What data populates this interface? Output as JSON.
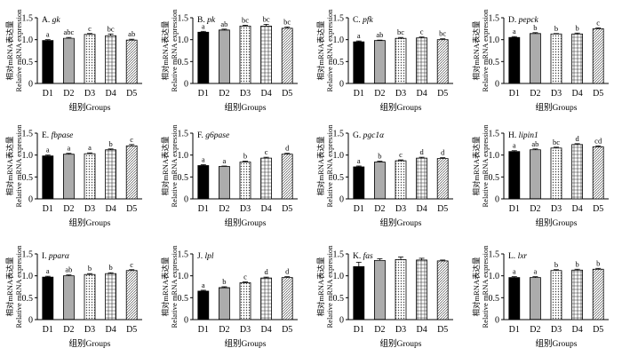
{
  "colors": {
    "bar_stroke": "#000000",
    "axis": "#000000",
    "background": "#ffffff"
  },
  "chart_data": [
    {
      "type": "bar",
      "title_prefix": "A. ",
      "title_gene": "gk",
      "categories": [
        "D1",
        "D2",
        "D3",
        "D4",
        "D5"
      ],
      "values": [
        0.98,
        1.03,
        1.12,
        1.09,
        0.99
      ],
      "errors": [
        0.02,
        0.02,
        0.02,
        0.04,
        0.02
      ],
      "labels": [
        "a",
        "abc",
        "c",
        "bc",
        "ab"
      ],
      "ylim": [
        0,
        1.5
      ],
      "yticks": [
        "0",
        "0.5",
        "1.0",
        "1.5"
      ],
      "ylabel_cn": "相对mRNA表达量",
      "ylabel_en": "Relative mRNA expression",
      "xlabel": "组别Groups"
    },
    {
      "type": "bar",
      "title_prefix": "B. ",
      "title_gene": "pk",
      "categories": [
        "D1",
        "D2",
        "D3",
        "D4",
        "D5"
      ],
      "values": [
        1.17,
        1.22,
        1.31,
        1.31,
        1.26
      ],
      "errors": [
        0.02,
        0.02,
        0.02,
        0.04,
        0.03
      ],
      "labels": [
        "a",
        "ab",
        "bc",
        "bc",
        "bc"
      ],
      "ylim": [
        0,
        1.5
      ],
      "yticks": [
        "0",
        "0.5",
        "1.0",
        "1.5"
      ],
      "ylabel_cn": "相对mRNA表达量",
      "ylabel_en": "Relative mRNA expression",
      "xlabel": "组别Groups"
    },
    {
      "type": "bar",
      "title_prefix": "C. ",
      "title_gene": "pfk",
      "categories": [
        "D1",
        "D2",
        "D3",
        "D4",
        "D5"
      ],
      "values": [
        0.95,
        0.98,
        1.03,
        1.04,
        1.0
      ],
      "errors": [
        0.02,
        0.01,
        0.02,
        0.02,
        0.02
      ],
      "labels": [
        "a",
        "ab",
        "bc",
        "c",
        "bc"
      ],
      "ylim": [
        0,
        1.5
      ],
      "yticks": [
        "0",
        "0.5",
        "1.0",
        "1.5"
      ],
      "ylabel_cn": "相对mRNA表达量",
      "ylabel_en": "Relative mRNA expression",
      "xlabel": "组别Groups"
    },
    {
      "type": "bar",
      "title_prefix": "D. ",
      "title_gene": "pepck",
      "categories": [
        "D1",
        "D2",
        "D3",
        "D4",
        "D5"
      ],
      "values": [
        1.05,
        1.14,
        1.13,
        1.13,
        1.25
      ],
      "errors": [
        0.02,
        0.02,
        0.01,
        0.02,
        0.02
      ],
      "labels": [
        "a",
        "b",
        "b",
        "b",
        "c"
      ],
      "ylim": [
        0,
        1.5
      ],
      "yticks": [
        "0",
        "0.5",
        "1.0",
        "1.5"
      ],
      "ylabel_cn": "相对mRNA表达量",
      "ylabel_en": "Relative mRNA expression",
      "xlabel": "组别Groups"
    },
    {
      "type": "bar",
      "title_prefix": "E. ",
      "title_gene": "fbpase",
      "categories": [
        "D1",
        "D2",
        "D3",
        "D4",
        "D5"
      ],
      "values": [
        0.98,
        1.02,
        1.03,
        1.12,
        1.21
      ],
      "errors": [
        0.02,
        0.02,
        0.02,
        0.02,
        0.03
      ],
      "labels": [
        "a",
        "a",
        "a",
        "b",
        "c"
      ],
      "ylim": [
        0,
        1.5
      ],
      "yticks": [
        "0",
        "0.5",
        "1.0",
        "1.5"
      ],
      "ylabel_cn": "相对mRNA表达量",
      "ylabel_en": "Relative mRNA expression",
      "xlabel": "组别Groups"
    },
    {
      "type": "bar",
      "title_prefix": "F. ",
      "title_gene": "g6pase",
      "categories": [
        "D1",
        "D2",
        "D3",
        "D4",
        "D5"
      ],
      "values": [
        0.76,
        0.74,
        0.84,
        0.93,
        1.02
      ],
      "errors": [
        0.02,
        0.01,
        0.02,
        0.02,
        0.02
      ],
      "labels": [
        "a",
        "a",
        "b",
        "c",
        "d"
      ],
      "ylim": [
        0,
        1.5
      ],
      "yticks": [
        "0",
        "0.5",
        "1.0",
        "1.5"
      ],
      "ylabel_cn": "相对mRNA表达量",
      "ylabel_en": "Relative mRNA expression",
      "xlabel": "组别Groups"
    },
    {
      "type": "bar",
      "title_prefix": "G. ",
      "title_gene": "pgc1α",
      "categories": [
        "D1",
        "D2",
        "D3",
        "D4",
        "D5"
      ],
      "values": [
        0.73,
        0.84,
        0.87,
        0.93,
        0.92
      ],
      "errors": [
        0.02,
        0.02,
        0.02,
        0.02,
        0.02
      ],
      "labels": [
        "a",
        "b",
        "c",
        "d",
        "d"
      ],
      "ylim": [
        0,
        1.5
      ],
      "yticks": [
        "0",
        "0.5",
        "1.0",
        "1.5"
      ],
      "ylabel_cn": "相对mRNA表达量",
      "ylabel_en": "Relative mRNA expression",
      "xlabel": "组别Groups"
    },
    {
      "type": "bar",
      "title_prefix": "H. ",
      "title_gene": "lipin1",
      "categories": [
        "D1",
        "D2",
        "D3",
        "D4",
        "D5"
      ],
      "values": [
        1.08,
        1.12,
        1.16,
        1.24,
        1.19
      ],
      "errors": [
        0.02,
        0.02,
        0.02,
        0.02,
        0.02
      ],
      "labels": [
        "a",
        "ab",
        "bc",
        "d",
        "cd"
      ],
      "ylim": [
        0,
        1.5
      ],
      "yticks": [
        "0",
        "0.5",
        "1.0",
        "1.5"
      ],
      "ylabel_cn": "相对mRNA表达量",
      "ylabel_en": "Relative mRNA expression",
      "xlabel": "组别Groups"
    },
    {
      "type": "bar",
      "title_prefix": "I. ",
      "title_gene": "pparα",
      "categories": [
        "D1",
        "D2",
        "D3",
        "D4",
        "D5"
      ],
      "values": [
        0.97,
        1.0,
        1.03,
        1.05,
        1.12
      ],
      "errors": [
        0.02,
        0.02,
        0.02,
        0.02,
        0.02
      ],
      "labels": [
        "a",
        "ab",
        "b",
        "b",
        "c"
      ],
      "ylim": [
        0,
        1.5
      ],
      "yticks": [
        "0",
        "0.5",
        "1.0",
        "1.5"
      ],
      "ylabel_cn": "相对mRNA表达量",
      "ylabel_en": "Relative mRNA expression",
      "xlabel": "组别Groups"
    },
    {
      "type": "bar",
      "title_prefix": "J. ",
      "title_gene": "lpl",
      "categories": [
        "D1",
        "D2",
        "D3",
        "D4",
        "D5"
      ],
      "values": [
        0.65,
        0.73,
        0.84,
        0.95,
        0.96
      ],
      "errors": [
        0.02,
        0.02,
        0.02,
        0.02,
        0.02
      ],
      "labels": [
        "a",
        "b",
        "c",
        "d",
        "d"
      ],
      "ylim": [
        0,
        1.5
      ],
      "yticks": [
        "0",
        "0.5",
        "1.0",
        "1.5"
      ],
      "ylabel_cn": "相对mRNA表达量",
      "ylabel_en": "Relative mRNA expression",
      "xlabel": "组别Groups"
    },
    {
      "type": "bar",
      "title_prefix": "K. ",
      "title_gene": "fas",
      "categories": [
        "D1",
        "D2",
        "D3",
        "D4",
        "D5"
      ],
      "values": [
        1.21,
        1.35,
        1.37,
        1.36,
        1.34
      ],
      "errors": [
        0.1,
        0.04,
        0.06,
        0.04,
        0.02
      ],
      "labels": [
        "",
        "",
        "",
        "",
        ""
      ],
      "ylim": [
        0,
        1.5
      ],
      "yticks": [
        "0",
        "0.5",
        "1.0",
        "1.5"
      ],
      "ylabel_cn": "相对mRNA表达量",
      "ylabel_en": "Relative mRNA expression",
      "xlabel": "组别Groups"
    },
    {
      "type": "bar",
      "title_prefix": "L. ",
      "title_gene": "lxr",
      "categories": [
        "D1",
        "D2",
        "D3",
        "D4",
        "D5"
      ],
      "values": [
        0.96,
        0.96,
        1.12,
        1.13,
        1.15
      ],
      "errors": [
        0.02,
        0.02,
        0.02,
        0.02,
        0.02
      ],
      "labels": [
        "a",
        "a",
        "b",
        "b",
        "b"
      ],
      "ylim": [
        0,
        1.5
      ],
      "yticks": [
        "0",
        "0.5",
        "1.0",
        "1.5"
      ],
      "ylabel_cn": "相对mRNA表达量",
      "ylabel_en": "Relative mRNA expression",
      "xlabel": "组别Groups"
    }
  ]
}
